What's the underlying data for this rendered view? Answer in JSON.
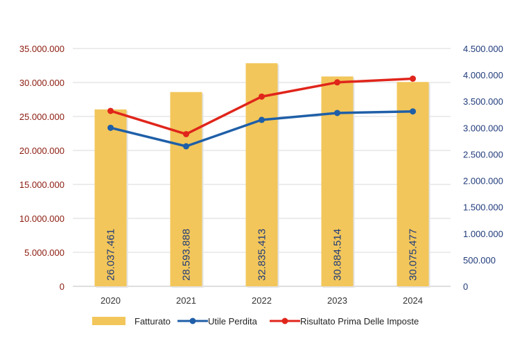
{
  "chart_data": {
    "type": "bar+line",
    "categories": [
      "2020",
      "2021",
      "2022",
      "2023",
      "2024"
    ],
    "series": [
      {
        "name": "Fatturato",
        "kind": "bar",
        "axis": "left",
        "values": [
          26037461,
          28593888,
          32835413,
          30884514,
          30075477
        ],
        "labels": [
          "26.037.461",
          "28.593.888",
          "32.835.413",
          "30.884.514",
          "30.075.477"
        ]
      },
      {
        "name": "Utile Perdita",
        "kind": "line",
        "axis": "right",
        "values": [
          3000000,
          2650000,
          3150000,
          3280000,
          3310000
        ]
      },
      {
        "name": "Risultato Prima Delle Imposte",
        "kind": "line",
        "axis": "right",
        "values": [
          3320000,
          2880000,
          3590000,
          3860000,
          3930000
        ]
      }
    ],
    "left_axis": {
      "range": [
        0,
        35000000
      ],
      "ticks": [
        0,
        5000000,
        10000000,
        15000000,
        20000000,
        25000000,
        30000000,
        35000000
      ],
      "tick_labels": [
        "0",
        "5.000.000",
        "10.000.000",
        "15.000.000",
        "20.000.000",
        "25.000.000",
        "30.000.000",
        "35.000.000"
      ]
    },
    "right_axis": {
      "range": [
        0,
        4500000
      ],
      "ticks": [
        0,
        500000,
        1000000,
        1500000,
        2000000,
        2500000,
        3000000,
        3500000,
        4000000,
        4500000
      ],
      "tick_labels": [
        "0",
        "500.000",
        "1.000.000",
        "1.500.000",
        "2.000.000",
        "2.500.000",
        "3.000.000",
        "3.500.000",
        "4.000.000",
        "4.500.000"
      ]
    },
    "grid": true,
    "legend_position": "bottom",
    "title": "",
    "xlabel": "",
    "ylabel": ""
  },
  "colors": {
    "bar": "#f2c65a",
    "utile": "#1f5fa8",
    "risultato": "#e0251b",
    "left_tick": "#8b1a0e",
    "right_tick": "#1f3a7a",
    "grid": "#d9d9d9"
  },
  "legend": {
    "items": [
      "Fatturato",
      "Utile Perdita",
      "Risultato Prima Delle Imposte"
    ]
  }
}
